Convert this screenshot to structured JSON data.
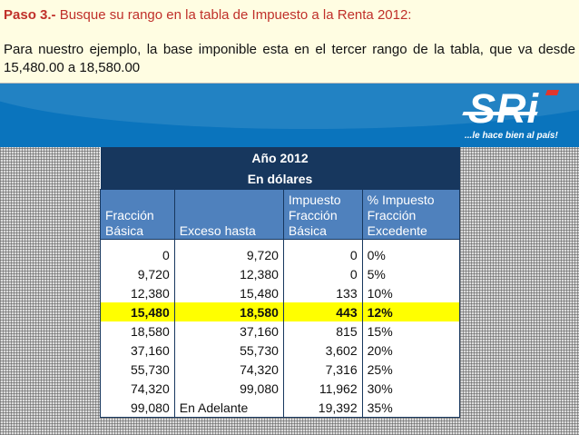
{
  "step": {
    "lead": "Paso 3.-",
    "text": "Busque su rango en la tabla de Impuesto a la Renta 2012:"
  },
  "paragraph": "Para nuestro ejemplo, la base imponible esta en el tercer rango de la tabla, que va desde 15,480.00 a 18,580.00",
  "logo": {
    "text": "SRi",
    "slogan": "...le hace bien al país!",
    "accent": "#e0362d",
    "bg": "#0a74bd"
  },
  "table": {
    "title1": "Año 2012",
    "title2": "En dólares",
    "columns": [
      [
        "Fracción",
        "Básica"
      ],
      [
        "Exceso hasta"
      ],
      [
        "Impuesto",
        "Fracción",
        "Básica"
      ],
      [
        "% Impuesto",
        "Fracción",
        "Excedente"
      ]
    ],
    "rows": [
      [
        "0",
        "9,720",
        "0",
        "0%"
      ],
      [
        "9,720",
        "12,380",
        "0",
        "5%"
      ],
      [
        "12,380",
        "15,480",
        "133",
        "10%"
      ],
      [
        "15,480",
        "18,580",
        "443",
        "12%"
      ],
      [
        "18,580",
        "37,160",
        "815",
        "15%"
      ],
      [
        "37,160",
        "55,730",
        "3,602",
        "20%"
      ],
      [
        "55,730",
        "74,320",
        "7,316",
        "25%"
      ],
      [
        "74,320",
        "99,080",
        "11,962",
        "30%"
      ],
      [
        "99,080",
        "En Adelante",
        "19,392",
        "35%"
      ]
    ],
    "highlight_row": 3,
    "highlight_color": "#ffff00"
  }
}
